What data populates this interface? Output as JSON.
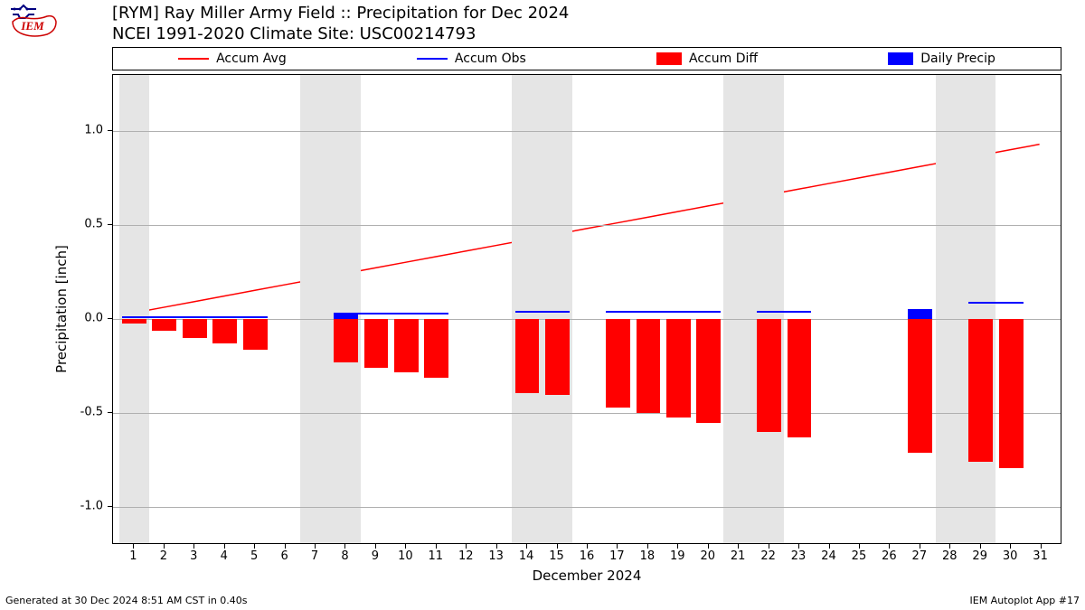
{
  "logo": {
    "text": "IEM",
    "outline_color": "#cc0000",
    "accent_color": "#000080"
  },
  "title": {
    "line1": "[RYM] Ray Miller Army Field :: Precipitation for Dec 2024",
    "line2": "NCEI 1991-2020 Climate Site: USC00214793"
  },
  "legend": {
    "items": [
      {
        "label": "Accum Avg",
        "kind": "line",
        "color": "#ff0000"
      },
      {
        "label": "Accum Obs",
        "kind": "line",
        "color": "#0000ff"
      },
      {
        "label": "Accum Diff",
        "kind": "box",
        "color": "#ff0000"
      },
      {
        "label": "Daily Precip",
        "kind": "box",
        "color": "#0000ff"
      }
    ]
  },
  "chart": {
    "type": "bar+line",
    "xlabel": "December 2024",
    "ylabel": "Precipitation [inch]",
    "xlim": [
      0.3,
      31.7
    ],
    "ylim": [
      -1.2,
      1.3
    ],
    "yticks": [
      -1.0,
      -0.5,
      0.0,
      0.5,
      1.0
    ],
    "xticks": [
      1,
      2,
      3,
      4,
      5,
      6,
      7,
      8,
      9,
      10,
      11,
      12,
      13,
      14,
      15,
      16,
      17,
      18,
      19,
      20,
      21,
      22,
      23,
      24,
      25,
      26,
      27,
      28,
      29,
      30,
      31
    ],
    "xtick_labels": [
      "1",
      "2",
      "3",
      "4",
      "5",
      "6",
      "7",
      "8",
      "9",
      "10",
      "11",
      "12",
      "13",
      "14",
      "15",
      "16",
      "17",
      "18",
      "19",
      "20",
      "21",
      "22",
      "23",
      "24",
      "25",
      "26",
      "27",
      "28",
      "29",
      "30",
      "31"
    ],
    "grid_color": "#b0b0b0",
    "background_color": "#ffffff",
    "weekend_color": "#e5e5e5",
    "weekend_pairs": [
      [
        1,
        1
      ],
      [
        7,
        8
      ],
      [
        14,
        15
      ],
      [
        21,
        22
      ],
      [
        28,
        29
      ]
    ],
    "bar_width": 0.8,
    "accum_avg": {
      "color": "#ff0000",
      "linewidth": 1.5,
      "x": [
        1,
        2,
        3,
        4,
        5,
        6,
        7,
        8,
        9,
        10,
        11,
        12,
        13,
        14,
        15,
        16,
        17,
        18,
        19,
        20,
        21,
        22,
        23,
        24,
        25,
        26,
        27,
        28,
        29,
        30,
        31
      ],
      "y": [
        0.03,
        0.06,
        0.09,
        0.12,
        0.15,
        0.18,
        0.21,
        0.24,
        0.27,
        0.3,
        0.33,
        0.36,
        0.39,
        0.42,
        0.45,
        0.48,
        0.51,
        0.54,
        0.57,
        0.6,
        0.63,
        0.66,
        0.69,
        0.72,
        0.75,
        0.78,
        0.81,
        0.84,
        0.87,
        0.9,
        0.93
      ]
    },
    "accum_obs": {
      "color": "#0000ff",
      "linewidth": 2,
      "segments": [
        {
          "x": [
            1,
            2,
            3,
            4,
            5
          ],
          "y": [
            0.01,
            0.01,
            0.01,
            0.01,
            0.01
          ]
        },
        {
          "x": [
            8,
            9,
            10,
            11
          ],
          "y": [
            0.03,
            0.03,
            0.03,
            0.03
          ]
        },
        {
          "x": [
            14,
            15
          ],
          "y": [
            0.04,
            0.04
          ]
        },
        {
          "x": [
            17,
            18,
            19,
            20
          ],
          "y": [
            0.04,
            0.04,
            0.04,
            0.04
          ]
        },
        {
          "x": [
            22,
            23
          ],
          "y": [
            0.04,
            0.04
          ]
        },
        {
          "x": [
            27
          ],
          "y": [
            0.05
          ]
        },
        {
          "x": [
            29,
            30
          ],
          "y": [
            0.09,
            0.09
          ]
        }
      ]
    },
    "accum_diff": {
      "color": "#ff0000",
      "x": [
        1,
        2,
        3,
        4,
        5,
        8,
        9,
        10,
        11,
        14,
        15,
        17,
        18,
        19,
        20,
        22,
        23,
        27,
        29,
        30
      ],
      "y": [
        -0.02,
        -0.06,
        -0.1,
        -0.13,
        -0.16,
        -0.23,
        -0.26,
        -0.28,
        -0.31,
        -0.39,
        -0.4,
        -0.47,
        -0.5,
        -0.52,
        -0.55,
        -0.6,
        -0.63,
        -0.71,
        -0.76,
        -0.79
      ]
    },
    "daily_precip": {
      "color": "#0000ff",
      "x": [
        8,
        27
      ],
      "y": [
        0.03,
        0.05
      ]
    }
  },
  "footer": {
    "left": "Generated at 30 Dec 2024 8:51 AM CST in 0.40s",
    "right": "IEM Autoplot App #17"
  }
}
